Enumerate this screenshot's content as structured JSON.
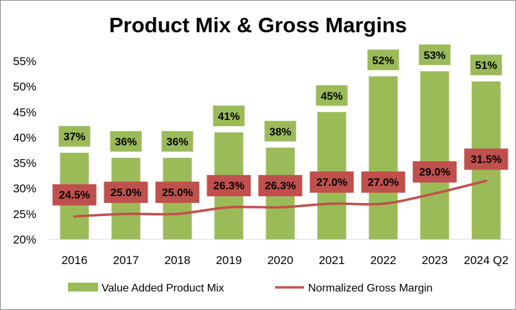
{
  "chart_data": {
    "type": "bar",
    "title": "Product Mix & Gross Margins",
    "categories": [
      "2016",
      "2017",
      "2018",
      "2019",
      "2020",
      "2021",
      "2022",
      "2023",
      "2024 Q2"
    ],
    "series": [
      {
        "name": "Value Added Product Mix",
        "type": "bar",
        "color": "#9bbb59",
        "values": [
          37,
          36,
          36,
          41,
          38,
          45,
          52,
          53,
          51
        ],
        "labels": [
          "37%",
          "36%",
          "36%",
          "41%",
          "38%",
          "45%",
          "52%",
          "53%",
          "51%"
        ]
      },
      {
        "name": "Normalized Gross Margin",
        "type": "line",
        "color": "#c0504d",
        "values": [
          24.5,
          25.0,
          25.0,
          26.3,
          26.3,
          27.0,
          27.0,
          29.0,
          31.5
        ],
        "labels": [
          "24.5%",
          "25.0%",
          "25.0%",
          "26.3%",
          "26.3%",
          "27.0%",
          "27.0%",
          "29.0%",
          "31.5%"
        ]
      }
    ],
    "ylim": [
      20,
      55
    ],
    "yticks": [
      "20%",
      "25%",
      "30%",
      "35%",
      "40%",
      "45%",
      "50%",
      "55%"
    ],
    "ytick_values": [
      20,
      25,
      30,
      35,
      40,
      45,
      50,
      55
    ],
    "xlabel": "",
    "ylabel": "",
    "grid": false,
    "legend_position": "bottom"
  }
}
